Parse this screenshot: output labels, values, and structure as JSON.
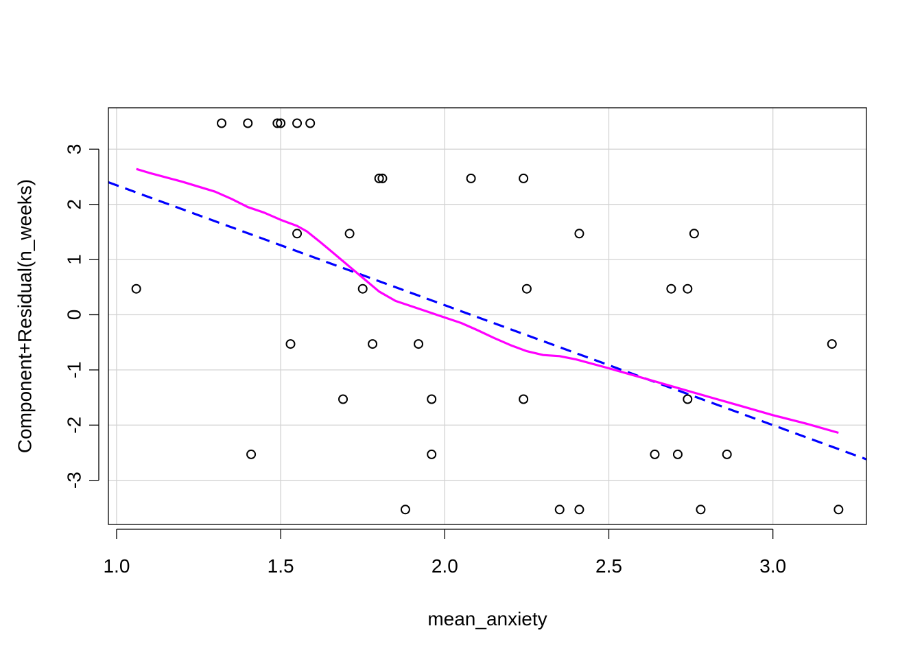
{
  "chart_data": {
    "type": "scatter",
    "title": "",
    "xlabel": "mean_anxiety",
    "ylabel": "Component+Residual(n_weeks)",
    "xlim": [
      0.975,
      3.285
    ],
    "ylim": [
      -3.8,
      3.75
    ],
    "x_ticks": [
      1.0,
      1.5,
      2.0,
      2.5,
      3.0
    ],
    "x_tick_labels": [
      "1.0",
      "1.5",
      "2.0",
      "2.5",
      "3.0"
    ],
    "y_ticks": [
      -3,
      -2,
      -1,
      0,
      1,
      2,
      3
    ],
    "y_tick_labels": [
      "-3",
      "-2",
      "-1",
      "0",
      "1",
      "2",
      "3"
    ],
    "grid_x": [
      1.0,
      1.5,
      2.0,
      2.5,
      3.0
    ],
    "grid_y": [
      -3,
      -2,
      -1,
      0,
      1,
      2,
      3
    ],
    "grid": true,
    "points": [
      {
        "x": 1.32,
        "y": 3.47
      },
      {
        "x": 1.4,
        "y": 3.47
      },
      {
        "x": 1.49,
        "y": 3.47
      },
      {
        "x": 1.5,
        "y": 3.47
      },
      {
        "x": 1.55,
        "y": 3.47
      },
      {
        "x": 1.59,
        "y": 3.47
      },
      {
        "x": 1.8,
        "y": 2.47
      },
      {
        "x": 1.81,
        "y": 2.47
      },
      {
        "x": 2.08,
        "y": 2.47
      },
      {
        "x": 2.24,
        "y": 2.47
      },
      {
        "x": 1.55,
        "y": 1.47
      },
      {
        "x": 1.71,
        "y": 1.47
      },
      {
        "x": 2.41,
        "y": 1.47
      },
      {
        "x": 2.76,
        "y": 1.47
      },
      {
        "x": 1.06,
        "y": 0.47
      },
      {
        "x": 1.75,
        "y": 0.47
      },
      {
        "x": 2.25,
        "y": 0.47
      },
      {
        "x": 2.69,
        "y": 0.47
      },
      {
        "x": 2.74,
        "y": 0.47
      },
      {
        "x": 1.53,
        "y": -0.53
      },
      {
        "x": 1.78,
        "y": -0.53
      },
      {
        "x": 1.92,
        "y": -0.53
      },
      {
        "x": 3.18,
        "y": -0.53
      },
      {
        "x": 1.69,
        "y": -1.53
      },
      {
        "x": 1.96,
        "y": -1.53
      },
      {
        "x": 2.24,
        "y": -1.53
      },
      {
        "x": 2.74,
        "y": -1.53
      },
      {
        "x": 1.41,
        "y": -2.53
      },
      {
        "x": 1.96,
        "y": -2.53
      },
      {
        "x": 2.64,
        "y": -2.53
      },
      {
        "x": 2.71,
        "y": -2.53
      },
      {
        "x": 2.86,
        "y": -2.53
      },
      {
        "x": 1.88,
        "y": -3.53
      },
      {
        "x": 2.35,
        "y": -3.53
      },
      {
        "x": 2.41,
        "y": -3.53
      },
      {
        "x": 2.78,
        "y": -3.53
      },
      {
        "x": 3.2,
        "y": -3.53
      }
    ],
    "series": [
      {
        "type": "line",
        "style": "dashed",
        "color": "#0000ff",
        "x": [
          0.975,
          3.285
        ],
        "y": [
          2.4,
          -2.62
        ]
      },
      {
        "type": "line",
        "style": "solid",
        "color": "#ff00ff",
        "x": [
          1.06,
          1.1,
          1.2,
          1.3,
          1.35,
          1.4,
          1.45,
          1.5,
          1.55,
          1.58,
          1.62,
          1.66,
          1.7,
          1.75,
          1.8,
          1.85,
          1.9,
          2.0,
          2.05,
          2.1,
          2.15,
          2.2,
          2.25,
          2.3,
          2.35,
          2.4,
          2.5,
          2.6,
          2.7,
          2.8,
          2.9,
          3.0,
          3.1,
          3.2
        ],
        "y": [
          2.64,
          2.57,
          2.41,
          2.23,
          2.1,
          1.95,
          1.85,
          1.72,
          1.61,
          1.51,
          1.32,
          1.12,
          0.92,
          0.67,
          0.42,
          0.25,
          0.15,
          -0.05,
          -0.15,
          -0.28,
          -0.42,
          -0.55,
          -0.66,
          -0.73,
          -0.75,
          -0.81,
          -0.97,
          -1.14,
          -1.31,
          -1.48,
          -1.65,
          -1.82,
          -1.97,
          -2.14
        ]
      }
    ]
  }
}
